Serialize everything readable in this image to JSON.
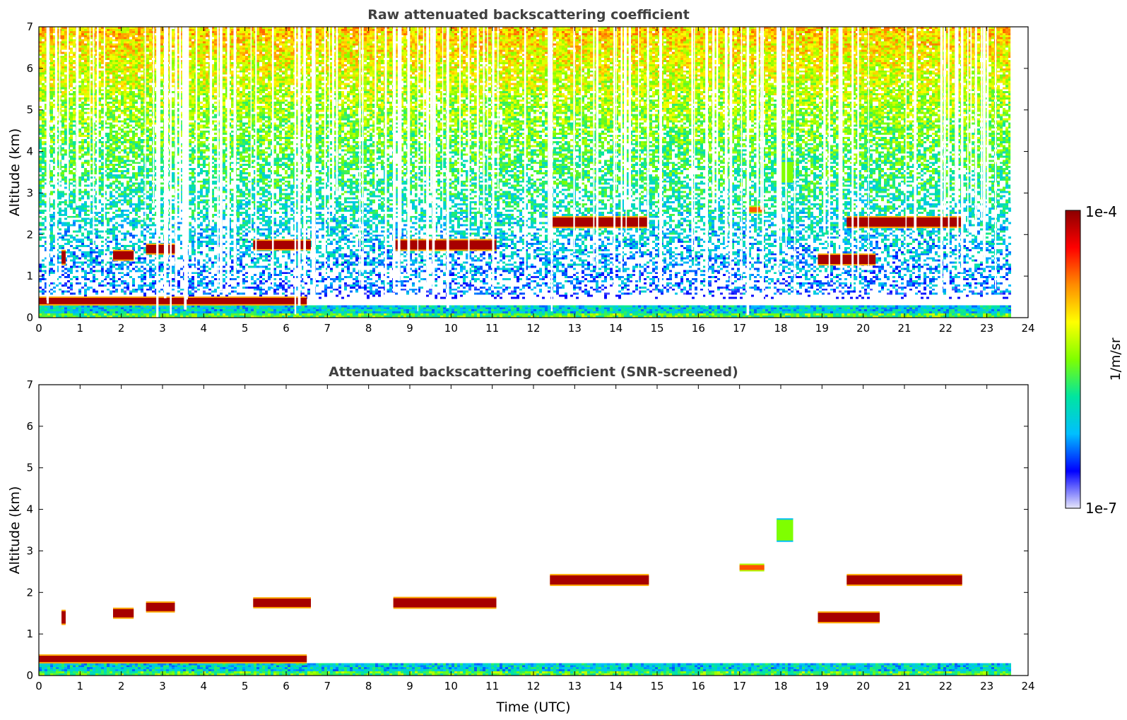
{
  "chart_data": [
    {
      "type": "heatmap",
      "title": "Raw attenuated backscattering coefficient",
      "xlabel": "",
      "ylabel": "Altitude (km)",
      "xlim": [
        0,
        24
      ],
      "ylim": [
        0,
        7
      ],
      "xticks": [
        "0",
        "1",
        "2",
        "3",
        "4",
        "5",
        "6",
        "7",
        "8",
        "9",
        "10",
        "11",
        "12",
        "13",
        "14",
        "15",
        "16",
        "17",
        "18",
        "19",
        "20",
        "21",
        "22",
        "23",
        "24"
      ],
      "yticks": [
        "0",
        "1",
        "2",
        "3",
        "4",
        "5",
        "6",
        "7"
      ],
      "data_end_time": 23.6,
      "noise": "high",
      "layers": [
        {
          "name": "boundary layer top",
          "t0": 0,
          "t1": 6.5,
          "alt": 0.4,
          "thickness": 0.15,
          "intensity": "high"
        },
        {
          "name": "cloud",
          "t0": 0.55,
          "t1": 0.65,
          "alt": 1.45,
          "thickness": 0.3,
          "intensity": "high"
        },
        {
          "name": "cloud",
          "t0": 1.8,
          "t1": 2.3,
          "alt": 1.5,
          "thickness": 0.2,
          "intensity": "high"
        },
        {
          "name": "cloud",
          "t0": 2.6,
          "t1": 3.3,
          "alt": 1.65,
          "thickness": 0.2,
          "intensity": "high"
        },
        {
          "name": "cloud",
          "t0": 5.2,
          "t1": 6.6,
          "alt": 1.75,
          "thickness": 0.2,
          "intensity": "high"
        },
        {
          "name": "cloud",
          "t0": 8.6,
          "t1": 11.1,
          "alt": 1.75,
          "thickness": 0.22,
          "intensity": "high"
        },
        {
          "name": "cloud",
          "t0": 12.4,
          "t1": 14.8,
          "alt": 2.3,
          "thickness": 0.22,
          "intensity": "high"
        },
        {
          "name": "cloud",
          "t0": 17.2,
          "t1": 17.6,
          "alt": 2.6,
          "thickness": 0.12,
          "intensity": "medium"
        },
        {
          "name": "cloud",
          "t0": 18.9,
          "t1": 20.3,
          "alt": 1.4,
          "thickness": 0.22,
          "intensity": "high"
        },
        {
          "name": "cloud",
          "t0": 19.6,
          "t1": 22.4,
          "alt": 2.3,
          "thickness": 0.22,
          "intensity": "high"
        },
        {
          "name": "aerosol",
          "t0": 17.9,
          "t1": 18.3,
          "alt": 3.5,
          "thickness": 0.5,
          "intensity": "low"
        }
      ]
    },
    {
      "type": "heatmap",
      "title": "Attenuated backscattering coefficient (SNR-screened)",
      "xlabel": "Time (UTC)",
      "ylabel": "Altitude (km)",
      "xlim": [
        0,
        24
      ],
      "ylim": [
        0,
        7
      ],
      "xticks": [
        "0",
        "1",
        "2",
        "3",
        "4",
        "5",
        "6",
        "7",
        "8",
        "9",
        "10",
        "11",
        "12",
        "13",
        "14",
        "15",
        "16",
        "17",
        "18",
        "19",
        "20",
        "21",
        "22",
        "23",
        "24"
      ],
      "yticks": [
        "0",
        "1",
        "2",
        "3",
        "4",
        "5",
        "6",
        "7"
      ],
      "data_end_time": 23.6,
      "noise": "screened",
      "layers": [
        {
          "name": "boundary layer top",
          "t0": 0,
          "t1": 6.5,
          "alt": 0.4,
          "thickness": 0.15,
          "intensity": "high"
        },
        {
          "name": "cloud",
          "t0": 0.55,
          "t1": 0.65,
          "alt": 1.4,
          "thickness": 0.3,
          "intensity": "high"
        },
        {
          "name": "cloud",
          "t0": 1.8,
          "t1": 2.3,
          "alt": 1.5,
          "thickness": 0.2,
          "intensity": "high"
        },
        {
          "name": "cloud",
          "t0": 2.6,
          "t1": 3.3,
          "alt": 1.65,
          "thickness": 0.2,
          "intensity": "high"
        },
        {
          "name": "cloud",
          "t0": 5.2,
          "t1": 6.6,
          "alt": 1.75,
          "thickness": 0.2,
          "intensity": "high"
        },
        {
          "name": "cloud",
          "t0": 8.6,
          "t1": 11.1,
          "alt": 1.75,
          "thickness": 0.22,
          "intensity": "high"
        },
        {
          "name": "cloud",
          "t0": 12.4,
          "t1": 14.8,
          "alt": 2.3,
          "thickness": 0.22,
          "intensity": "high"
        },
        {
          "name": "cloud",
          "t0": 17.0,
          "t1": 17.6,
          "alt": 2.6,
          "thickness": 0.12,
          "intensity": "medium"
        },
        {
          "name": "cloud",
          "t0": 18.9,
          "t1": 20.4,
          "alt": 1.4,
          "thickness": 0.22,
          "intensity": "high"
        },
        {
          "name": "cloud",
          "t0": 19.6,
          "t1": 22.4,
          "alt": 2.3,
          "thickness": 0.22,
          "intensity": "high"
        },
        {
          "name": "aerosol",
          "t0": 17.9,
          "t1": 18.3,
          "alt": 3.5,
          "thickness": 0.5,
          "intensity": "low"
        }
      ]
    }
  ],
  "colorbar": {
    "max_label": "1e-4",
    "min_label": "1e-7",
    "label": "1/m/sr",
    "colormap": [
      "#e6e6fa",
      "#0000ff",
      "#00bfff",
      "#00e5a0",
      "#7fff00",
      "#ffff00",
      "#ff8c00",
      "#ff0000",
      "#8b0000"
    ]
  }
}
